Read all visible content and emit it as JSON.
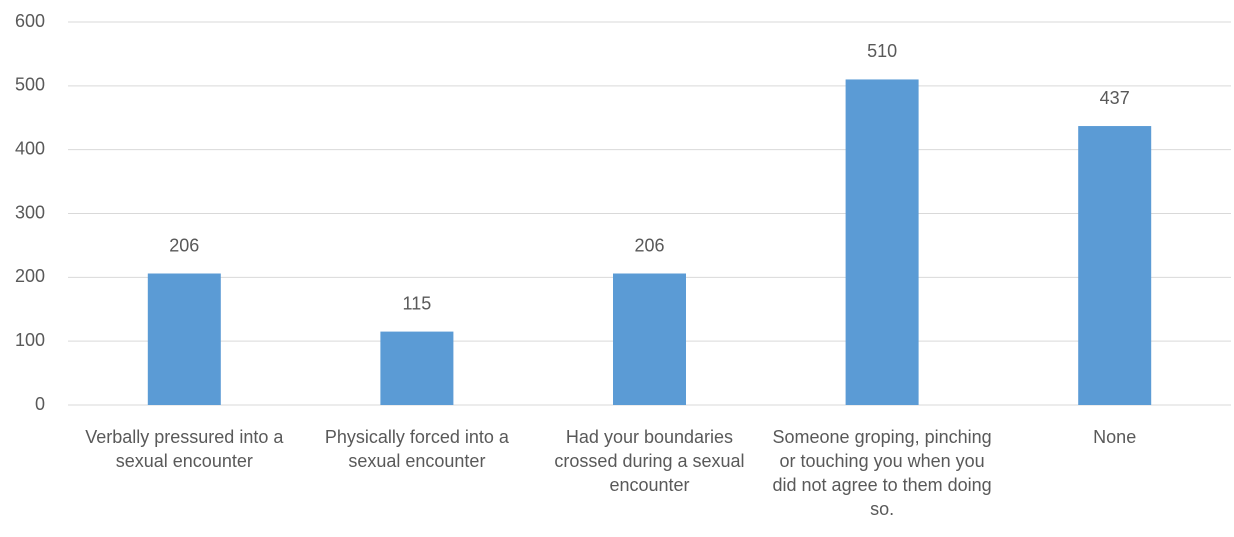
{
  "chart_data": {
    "type": "bar",
    "categories": [
      "Verbally pressured into a sexual encounter",
      "Physically forced into a sexual encounter",
      "Had your boundaries crossed during a sexual encounter",
      "Someone groping, pinching or touching you when you did not agree to them doing so.",
      "None"
    ],
    "values": [
      206,
      115,
      206,
      510,
      437
    ],
    "color": "#5b9bd5",
    "ylim": [
      0,
      600
    ],
    "yticks": [
      0,
      100,
      200,
      300,
      400,
      500,
      600
    ],
    "grid": true
  }
}
